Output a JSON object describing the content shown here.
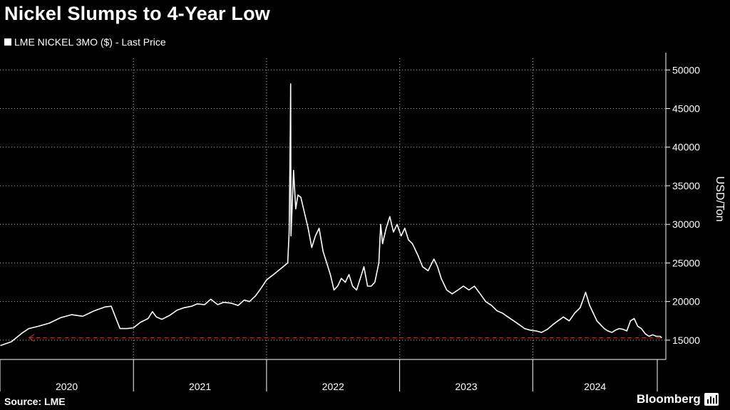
{
  "header": {
    "title": "Nickel Slumps to 4-Year Low"
  },
  "legend": {
    "label": "LME NICKEL 3MO ($) - Last Price",
    "swatch_color": "#ffffff"
  },
  "footer": {
    "source": "Source: LME",
    "brand": "Bloomberg",
    "brand_icon": "bar-chart-icon"
  },
  "colors": {
    "background": "#000000",
    "line": "#ffffff",
    "reference": "#d32f2f",
    "grid": "#ffffff"
  },
  "chart_data": {
    "type": "line",
    "title": "Nickel Slumps to 4-Year Low",
    "ylabel": "USD/Ton",
    "xlabel": "",
    "y_axis_position": "right",
    "ylim": [
      12500,
      51500
    ],
    "xlim": [
      "2020-01-01",
      "2024-12-31"
    ],
    "y_ticks": [
      15000,
      20000,
      25000,
      30000,
      35000,
      40000,
      45000,
      50000
    ],
    "x_year_labels": [
      "2020",
      "2021",
      "2022",
      "2023",
      "2024"
    ],
    "grid": "horizontal dotted",
    "legend_position": "top-left",
    "series": [
      {
        "name": "LME NICKEL 3MO ($) - Last Price",
        "x": [
          "2020-01-02",
          "2020-02-01",
          "2020-03-01",
          "2020-03-20",
          "2020-04-15",
          "2020-05-15",
          "2020-06-15",
          "2020-07-15",
          "2020-08-15",
          "2020-09-15",
          "2020-10-15",
          "2020-11-01",
          "2020-11-25",
          "2020-12-15",
          "2021-01-01",
          "2021-01-20",
          "2021-02-10",
          "2021-02-22",
          "2021-03-05",
          "2021-03-20",
          "2021-04-10",
          "2021-05-01",
          "2021-05-20",
          "2021-06-10",
          "2021-06-25",
          "2021-07-15",
          "2021-08-01",
          "2021-08-20",
          "2021-09-05",
          "2021-09-25",
          "2021-10-15",
          "2021-11-01",
          "2021-11-15",
          "2021-12-01",
          "2021-12-15",
          "2022-01-01",
          "2022-01-20",
          "2022-02-10",
          "2022-02-28",
          "2022-03-04",
          "2022-03-07",
          "2022-03-08",
          "2022-03-09",
          "2022-03-16",
          "2022-03-22",
          "2022-03-28",
          "2022-04-05",
          "2022-04-15",
          "2022-04-25",
          "2022-05-05",
          "2022-05-15",
          "2022-05-25",
          "2022-06-05",
          "2022-06-15",
          "2022-06-25",
          "2022-07-05",
          "2022-07-15",
          "2022-07-25",
          "2022-08-05",
          "2022-08-15",
          "2022-08-25",
          "2022-09-05",
          "2022-09-15",
          "2022-09-25",
          "2022-10-05",
          "2022-10-15",
          "2022-10-25",
          "2022-11-05",
          "2022-11-10",
          "2022-11-15",
          "2022-11-25",
          "2022-12-05",
          "2022-12-15",
          "2022-12-25",
          "2023-01-05",
          "2023-01-15",
          "2023-01-25",
          "2023-02-05",
          "2023-02-20",
          "2023-03-05",
          "2023-03-20",
          "2023-04-05",
          "2023-04-15",
          "2023-04-25",
          "2023-05-10",
          "2023-05-25",
          "2023-06-10",
          "2023-06-25",
          "2023-07-10",
          "2023-07-25",
          "2023-08-10",
          "2023-08-25",
          "2023-09-10",
          "2023-09-25",
          "2023-10-10",
          "2023-10-25",
          "2023-11-10",
          "2023-11-25",
          "2023-12-10",
          "2023-12-25",
          "2024-01-10",
          "2024-01-25",
          "2024-02-10",
          "2024-02-25",
          "2024-03-10",
          "2024-03-25",
          "2024-04-10",
          "2024-04-25",
          "2024-05-10",
          "2024-05-20",
          "2024-05-25",
          "2024-06-05",
          "2024-06-15",
          "2024-06-25",
          "2024-07-05",
          "2024-07-15",
          "2024-07-25",
          "2024-08-05",
          "2024-08-15",
          "2024-08-25",
          "2024-09-05",
          "2024-09-15",
          "2024-09-25",
          "2024-10-05",
          "2024-10-15",
          "2024-10-25",
          "2024-11-05",
          "2024-11-15",
          "2024-11-25",
          "2024-12-05",
          "2024-12-15",
          "2024-12-20"
        ],
        "y": [
          14300,
          14800,
          15900,
          16500,
          16800,
          17200,
          17900,
          18300,
          18100,
          18800,
          19300,
          19400,
          16500,
          16500,
          16600,
          17300,
          17800,
          18700,
          18000,
          17700,
          18200,
          18900,
          19200,
          19400,
          19700,
          19600,
          20300,
          19600,
          19900,
          19800,
          19500,
          20200,
          20000,
          20700,
          21600,
          22800,
          23500,
          24300,
          25000,
          29000,
          42000,
          48200,
          28500,
          37000,
          32000,
          33800,
          33500,
          31500,
          29500,
          27000,
          28500,
          29500,
          26500,
          25000,
          23500,
          21500,
          22000,
          23000,
          22500,
          23500,
          22000,
          21500,
          23000,
          24500,
          22000,
          22000,
          22500,
          25000,
          30000,
          27500,
          29500,
          31000,
          29000,
          30000,
          28500,
          29500,
          28000,
          27500,
          26000,
          24500,
          24000,
          25500,
          24500,
          23000,
          21500,
          21000,
          21500,
          22000,
          21500,
          22000,
          21000,
          20000,
          19500,
          18800,
          18500,
          18000,
          17500,
          17000,
          16500,
          16300,
          16200,
          16000,
          16400,
          17000,
          17500,
          18000,
          17500,
          18500,
          19200,
          20500,
          21200,
          19500,
          18500,
          17500,
          17000,
          16500,
          16200,
          16000,
          16300,
          16500,
          16400,
          16200,
          17500,
          17800,
          16800,
          16500,
          15800,
          15500,
          15700,
          15500,
          15500,
          15300
        ]
      }
    ],
    "annotations": [
      {
        "type": "reference-line",
        "style": "dashed-arrow",
        "y": 15300,
        "x_start": "2020-03-20",
        "x_end": "2024-12-20",
        "color": "#d32f2f"
      }
    ]
  }
}
